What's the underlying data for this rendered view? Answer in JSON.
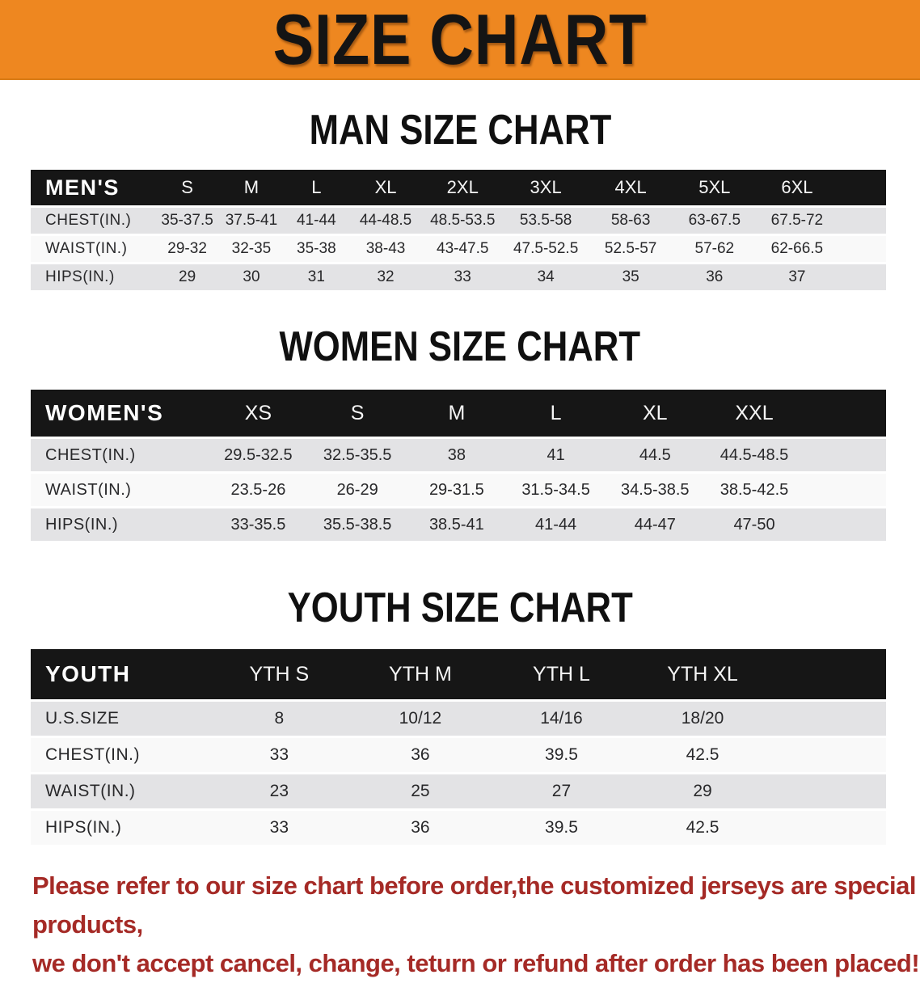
{
  "banner": {
    "title": "SIZE CHART",
    "bg_color": "#ee8720"
  },
  "sections": [
    {
      "heading": "MAN SIZE CHART",
      "table": {
        "header_label": "MEN'S",
        "columns": [
          "S",
          "M",
          "L",
          "XL",
          "2XL",
          "3XL",
          "4XL",
          "5XL",
          "6XL"
        ],
        "rows": [
          {
            "label": "CHEST(IN.)",
            "values": [
              "35-37.5",
              "37.5-41",
              "41-44",
              "44-48.5",
              "48.5-53.5",
              "53.5-58",
              "58-63",
              "63-67.5",
              "67.5-72"
            ]
          },
          {
            "label": "WAIST(IN.)",
            "values": [
              "29-32",
              "32-35",
              "35-38",
              "38-43",
              "43-47.5",
              "47.5-52.5",
              "52.5-57",
              "57-62",
              "62-66.5"
            ]
          },
          {
            "label": "HIPS(IN.)",
            "values": [
              "29",
              "30",
              "31",
              "32",
              "33",
              "34",
              "35",
              "36",
              "37"
            ]
          }
        ]
      }
    },
    {
      "heading": "WOMEN SIZE CHART",
      "table": {
        "header_label": "WOMEN'S",
        "columns": [
          "XS",
          "S",
          "M",
          "L",
          "XL",
          "XXL"
        ],
        "rows": [
          {
            "label": "CHEST(IN.)",
            "values": [
              "29.5-32.5",
              "32.5-35.5",
              "38",
              "41",
              "44.5",
              "44.5-48.5"
            ]
          },
          {
            "label": "WAIST(IN.)",
            "values": [
              "23.5-26",
              "26-29",
              "29-31.5",
              "31.5-34.5",
              "34.5-38.5",
              "38.5-42.5"
            ]
          },
          {
            "label": "HIPS(IN.)",
            "values": [
              "33-35.5",
              "35.5-38.5",
              "38.5-41",
              "41-44",
              "44-47",
              "47-50"
            ]
          }
        ]
      }
    },
    {
      "heading": "YOUTH SIZE CHART",
      "table": {
        "header_label": "YOUTH",
        "columns": [
          "YTH S",
          "YTH M",
          "YTH L",
          "YTH XL"
        ],
        "rows": [
          {
            "label": "U.S.SIZE",
            "values": [
              "8",
              "10/12",
              "14/16",
              "18/20"
            ]
          },
          {
            "label": "CHEST(IN.)",
            "values": [
              "33",
              "36",
              "39.5",
              "42.5"
            ]
          },
          {
            "label": "WAIST(IN.)",
            "values": [
              "23",
              "25",
              "27",
              "29"
            ]
          },
          {
            "label": "HIPS(IN.)",
            "values": [
              "33",
              "36",
              "39.5",
              "42.5"
            ]
          }
        ]
      }
    }
  ],
  "footer": {
    "line1": "Please refer to our size chart before order,the customized jerseys are special products,",
    "line2": "we don't accept cancel, change, teturn or refund after order has been placed!",
    "text_color": "#a52a26"
  }
}
